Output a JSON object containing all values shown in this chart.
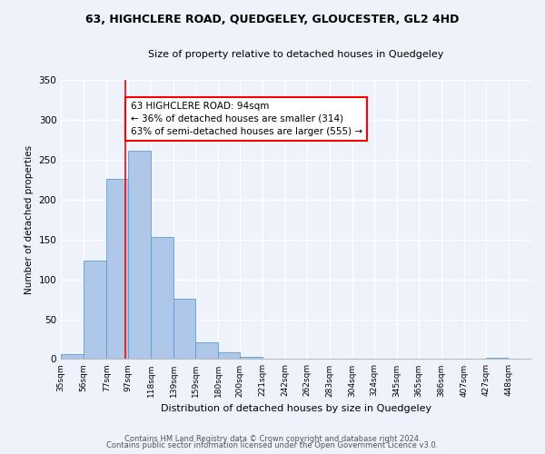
{
  "title": "63, HIGHCLERE ROAD, QUEDGELEY, GLOUCESTER, GL2 4HD",
  "subtitle": "Size of property relative to detached houses in Quedgeley",
  "xlabel": "Distribution of detached houses by size in Quedgeley",
  "ylabel": "Number of detached properties",
  "bin_labels": [
    "35sqm",
    "56sqm",
    "77sqm",
    "97sqm",
    "118sqm",
    "139sqm",
    "159sqm",
    "180sqm",
    "200sqm",
    "221sqm",
    "242sqm",
    "262sqm",
    "283sqm",
    "304sqm",
    "324sqm",
    "345sqm",
    "365sqm",
    "386sqm",
    "407sqm",
    "427sqm",
    "448sqm"
  ],
  "bar_values": [
    6,
    124,
    226,
    261,
    153,
    76,
    21,
    9,
    3,
    0,
    1,
    0,
    0,
    0,
    0,
    0,
    0,
    0,
    0,
    2,
    0
  ],
  "bar_color": "#aec6e8",
  "bar_edge_color": "#5a9fd4",
  "vline_x": 94,
  "vline_color": "red",
  "annotation_text": "63 HIGHCLERE ROAD: 94sqm\n← 36% of detached houses are smaller (314)\n63% of semi-detached houses are larger (555) →",
  "annotation_box_color": "white",
  "annotation_box_edge": "red",
  "ylim": [
    0,
    350
  ],
  "yticks": [
    0,
    50,
    100,
    150,
    200,
    250,
    300,
    350
  ],
  "footer_line1": "Contains HM Land Registry data © Crown copyright and database right 2024.",
  "footer_line2": "Contains public sector information licensed under the Open Government Licence v3.0.",
  "background_color": "#eef2fb",
  "grid_color": "white",
  "bin_width_values": [
    21,
    21,
    20,
    21,
    21,
    20,
    21,
    20,
    21,
    21,
    20,
    21,
    21,
    20,
    21,
    20,
    21,
    21,
    20,
    21,
    21
  ]
}
